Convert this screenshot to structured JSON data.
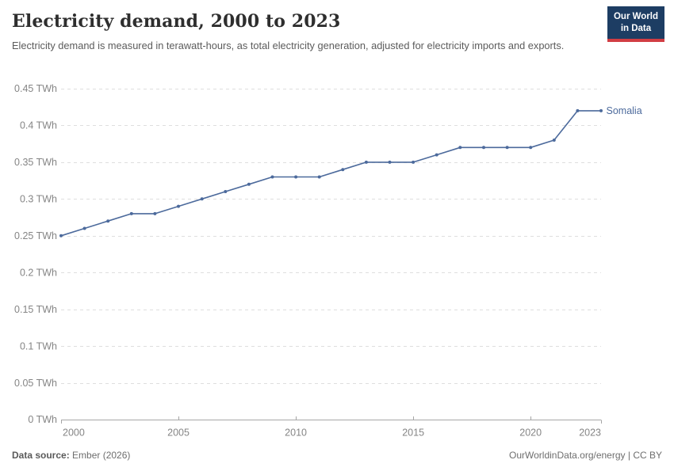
{
  "header": {
    "title": "Electricity demand, 2000 to 2023",
    "subtitle": "Electricity demand is measured in terawatt-hours, as total electricity generation, adjusted for electricity imports and exports."
  },
  "logo": {
    "line1": "Our World",
    "line2": "in Data",
    "navy": "#1d3d63",
    "red": "#d13d43"
  },
  "footer": {
    "source_label": "Data source:",
    "source_value": " Ember (2026)",
    "credit": "OurWorldinData.org/energy | CC BY"
  },
  "colors": {
    "accent_line": "#4c6a9c",
    "gridline": "#dedede",
    "axis_line": "#a6a6a6",
    "tick_text": "#858585"
  },
  "chart_data": {
    "type": "line",
    "title": "Electricity demand, 2000 to 2023",
    "xlabel": "",
    "ylabel": "",
    "unit": "TWh",
    "grid": "horizontal-dashed",
    "legend_position": "end-of-line-label",
    "x": [
      2000,
      2001,
      2002,
      2003,
      2004,
      2005,
      2006,
      2007,
      2008,
      2009,
      2010,
      2011,
      2012,
      2013,
      2014,
      2015,
      2016,
      2017,
      2018,
      2019,
      2020,
      2021,
      2022,
      2023
    ],
    "series": [
      {
        "name": "Somalia",
        "color": "#4c6a9c",
        "values": [
          0.25,
          0.26,
          0.27,
          0.28,
          0.28,
          0.29,
          0.3,
          0.31,
          0.32,
          0.33,
          0.33,
          0.33,
          0.34,
          0.35,
          0.35,
          0.35,
          0.36,
          0.37,
          0.37,
          0.37,
          0.37,
          0.38,
          0.42,
          0.42
        ]
      }
    ],
    "ylim": [
      0,
      0.45
    ],
    "yticks": [
      {
        "value": 0,
        "label": "0 TWh"
      },
      {
        "value": 0.05,
        "label": "0.05 TWh"
      },
      {
        "value": 0.1,
        "label": "0.1 TWh"
      },
      {
        "value": 0.15,
        "label": "0.15 TWh"
      },
      {
        "value": 0.2,
        "label": "0.2 TWh"
      },
      {
        "value": 0.25,
        "label": "0.25 TWh"
      },
      {
        "value": 0.3,
        "label": "0.3 TWh"
      },
      {
        "value": 0.35,
        "label": "0.35 TWh"
      },
      {
        "value": 0.4,
        "label": "0.4 TWh"
      },
      {
        "value": 0.45,
        "label": "0.45 TWh"
      }
    ],
    "xticks": [
      2000,
      2005,
      2010,
      2015,
      2020,
      2023
    ]
  }
}
